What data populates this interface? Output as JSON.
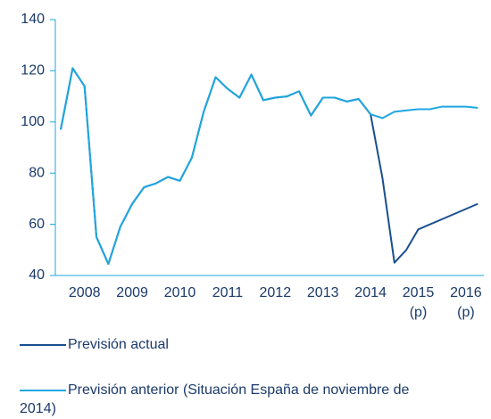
{
  "chart_data": {
    "type": "line",
    "categories": [
      null,
      null,
      "2008",
      null,
      null,
      null,
      "2009",
      null,
      null,
      null,
      "2010",
      null,
      null,
      null,
      "2011",
      null,
      null,
      null,
      "2012",
      null,
      null,
      null,
      "2013",
      null,
      null,
      null,
      "2014",
      null,
      null,
      null,
      "2015\n(p)",
      null,
      null,
      null,
      "2016\n(p)",
      null
    ],
    "series": [
      {
        "name": "Previsión actual",
        "color": "#1a4f8f",
        "values": [
          97,
          121,
          114,
          55,
          44.5,
          59,
          68,
          74.5,
          76,
          78.5,
          77,
          86,
          104,
          117.5,
          113,
          109.5,
          118.5,
          108.5,
          109.5,
          110,
          112,
          102.5,
          109.5,
          109.5,
          108,
          109,
          103,
          78,
          45,
          50,
          58,
          60,
          62,
          64,
          66,
          68
        ]
      },
      {
        "name": "Previsión anterior (Situación España de noviembre de 2014)",
        "color": "#1ea7e1",
        "values": [
          97,
          121,
          114,
          55,
          44.5,
          59,
          68,
          74.5,
          76,
          78.5,
          77,
          86,
          104,
          117.5,
          113,
          109.5,
          118.5,
          108.5,
          109.5,
          110,
          112,
          102.5,
          109.5,
          109.5,
          108,
          109,
          103,
          101.5,
          104,
          104.5,
          105,
          105,
          106,
          106,
          106,
          105.5
        ]
      }
    ],
    "ylim": [
      40,
      140
    ],
    "yticks": [
      40,
      60,
      80,
      100,
      120,
      140
    ],
    "grid": false
  }
}
